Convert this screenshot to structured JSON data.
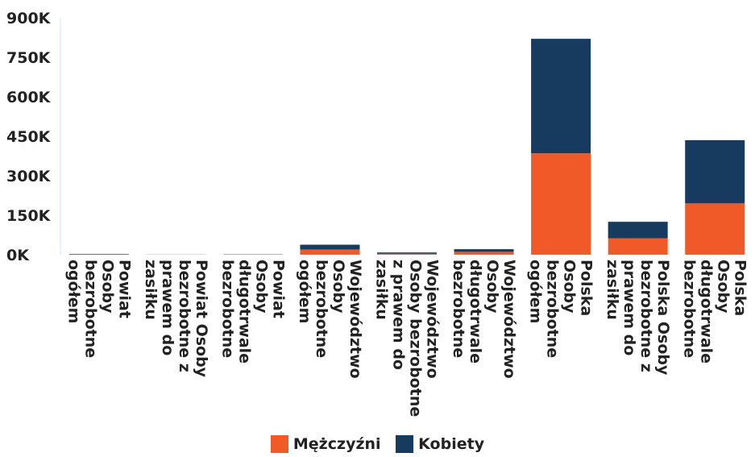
{
  "chart_data": {
    "type": "bar",
    "stacked": true,
    "categories": [
      [
        "Powiat",
        "Osoby",
        "bezrobotne",
        "ogółem"
      ],
      [
        "Powiat Osoby",
        "bezrobotne z",
        "prawem do",
        "zasiłku"
      ],
      [
        "Powiat",
        "Osoby",
        "długotrwale",
        "bezrobotne"
      ],
      [
        "Województwo",
        "Osoby",
        "bezrobotne",
        "ogółem"
      ],
      [
        "Województwo",
        "Osoby bezrobotne",
        "z prawem do",
        "zasiłku"
      ],
      [
        "Województwo",
        "Osoby",
        "długotrwale",
        "bezrobotne"
      ],
      [
        "Polska",
        "Osoby",
        "bezrobotne",
        "ogółem"
      ],
      [
        "Polska Osoby",
        "bezrobotne z",
        "prawem do",
        "zasiłku"
      ],
      [
        "Polska",
        "Osoby",
        "długotrwale",
        "bezrobotne"
      ]
    ],
    "series": [
      {
        "name": "Mężczyźni",
        "color": "#f05a28",
        "values": [
          1200,
          300,
          700,
          20000,
          4000,
          11000,
          385000,
          62000,
          195000
        ]
      },
      {
        "name": "Kobiety",
        "color": "#163b5e",
        "values": [
          1500,
          400,
          900,
          18000,
          4500,
          10000,
          435000,
          63000,
          240000
        ]
      }
    ],
    "yticks": [
      "0K",
      "150K",
      "300K",
      "450K",
      "600K",
      "750K",
      "900K"
    ],
    "ylim": [
      0,
      900000
    ],
    "title": "",
    "xlabel": "",
    "ylabel": "",
    "legend_position": "bottom"
  },
  "legend": {
    "items": [
      {
        "label": "Mężczyźni",
        "color": "#f05a28"
      },
      {
        "label": "Kobiety",
        "color": "#163b5e"
      }
    ]
  }
}
